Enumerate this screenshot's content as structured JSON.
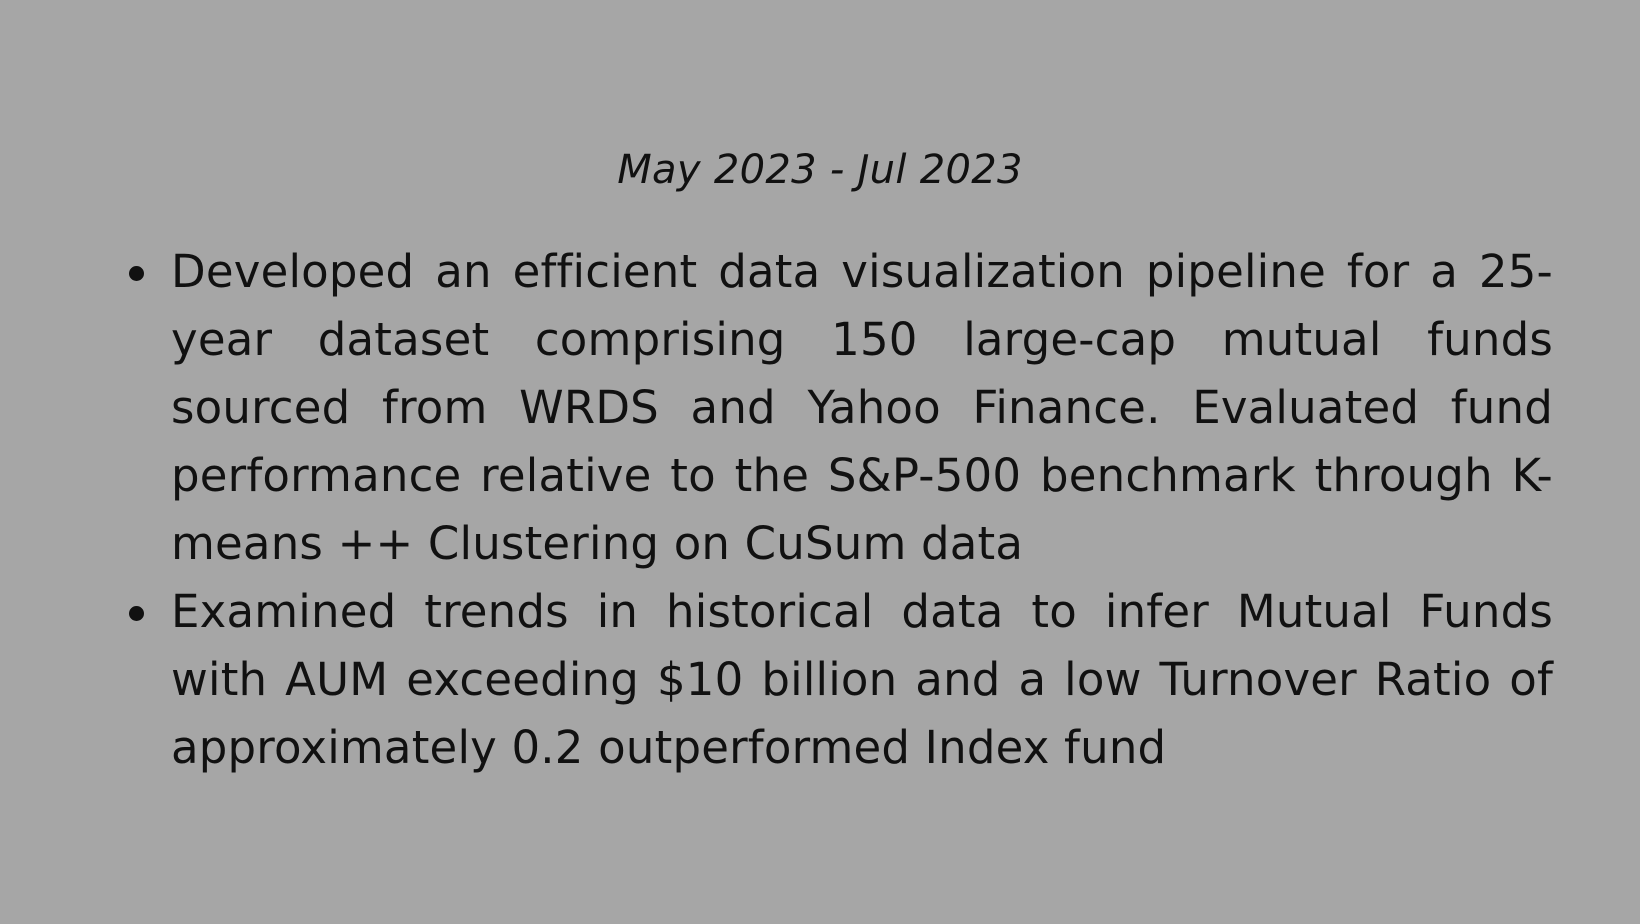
{
  "header": {
    "date_range": "May 2023 - Jul 2023"
  },
  "bullets": [
    {
      "text": "Developed an efficient data visualization pipeline for a 25-year dataset comprising 150 large-cap mutual funds sourced from WRDS and Yahoo Finance. Evaluated fund performance relative to the S&P-500 benchmark through K-means ++ Clustering on CuSum data"
    },
    {
      "text": "Examined trends in historical data to infer Mutual Funds with AUM exceeding $10 billion and a low Turnover Ratio of approximately 0.2 outperformed Index fund"
    }
  ],
  "colors": {
    "background": "#a6a6a6",
    "text": "#111111"
  }
}
